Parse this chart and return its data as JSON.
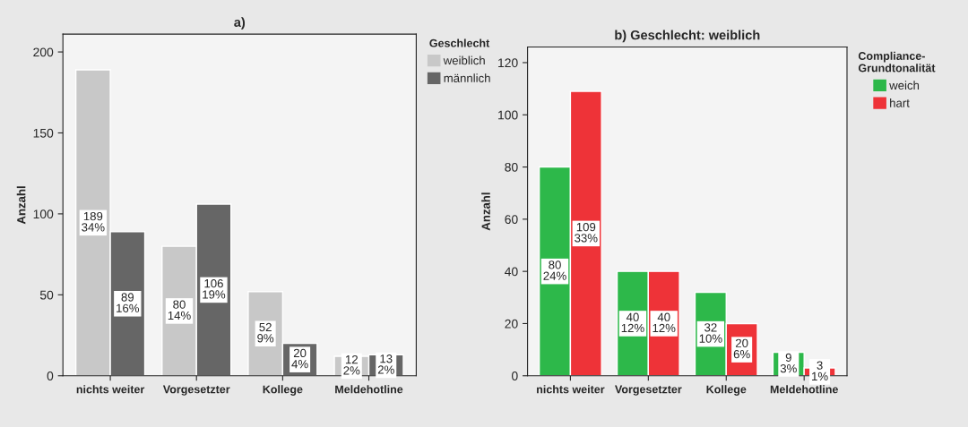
{
  "chart_data": [
    {
      "type": "bar",
      "title": "a)",
      "ylabel": "Anzahl",
      "legend_title": "Geschlecht",
      "legend": "top right",
      "grid": false,
      "categories": [
        "nichts weiter",
        "Vorgesetzter",
        "Kollege",
        "Meldehotline"
      ],
      "ylim": [
        0,
        211
      ],
      "yticks": [
        0,
        50,
        100,
        150,
        200
      ],
      "series": [
        {
          "name": "weiblich",
          "color": "#c8c8c8",
          "values": [
            189,
            80,
            52,
            12
          ],
          "value_labels": [
            "189\n34%",
            "80\n14%",
            "52\n9%",
            "12\n2%"
          ]
        },
        {
          "name": "männlich",
          "color": "#666666",
          "values": [
            89,
            106,
            20,
            13
          ],
          "value_labels": [
            "89\n16%",
            "106\n19%",
            "20\n4%",
            "13\n2%"
          ]
        }
      ]
    },
    {
      "type": "bar",
      "title": "b) Geschlecht: weiblich",
      "ylabel": "Anzahl",
      "legend_title": "Compliance-\nGrundtonalität",
      "legend": "top right",
      "grid": false,
      "categories": [
        "nichts weiter",
        "Vorgesetzter",
        "Kollege",
        "Meldehotline"
      ],
      "ylim": [
        0,
        126
      ],
      "yticks": [
        0,
        20,
        40,
        60,
        80,
        100,
        120
      ],
      "series": [
        {
          "name": "weich",
          "color": "#2db84a",
          "values": [
            80,
            40,
            32,
            9
          ],
          "value_labels": [
            "80\n24%",
            "40\n12%",
            "32\n10%",
            "9\n3%"
          ]
        },
        {
          "name": "hart",
          "color": "#ee3338",
          "values": [
            109,
            40,
            20,
            3
          ],
          "value_labels": [
            "109\n33%",
            "40\n12%",
            "20\n6%",
            "3\n1%"
          ]
        }
      ]
    }
  ]
}
